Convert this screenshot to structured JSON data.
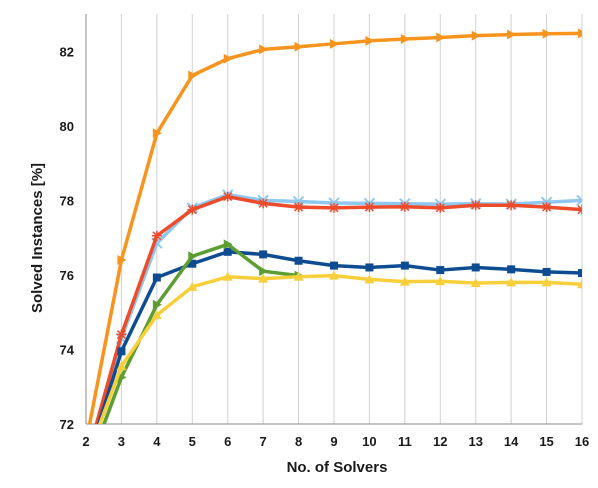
{
  "chart_data": {
    "type": "line",
    "xlabel": "No. of Solvers",
    "ylabel": "Solved Instances  [%]",
    "xlim": [
      2,
      16
    ],
    "ylim": [
      72,
      83
    ],
    "x_ticks": [
      "2",
      "3",
      "4",
      "5",
      "6",
      "7",
      "8",
      "9",
      "10",
      "11",
      "12",
      "13",
      "14",
      "15",
      "16"
    ],
    "y_ticks": [
      "72",
      "74",
      "76",
      "78",
      "80",
      "82"
    ],
    "grid": "vertical",
    "legend": "none",
    "series": [
      {
        "color": "#F7941D",
        "marker": "triangle-right",
        "x": [
          2,
          3,
          4,
          5,
          6,
          7,
          8,
          9,
          10,
          11,
          12,
          13,
          14,
          15,
          16
        ],
        "values": [
          71.5,
          76.4,
          79.8,
          81.35,
          81.8,
          82.05,
          82.12,
          82.2,
          82.28,
          82.33,
          82.37,
          82.42,
          82.45,
          82.47,
          82.48
        ]
      },
      {
        "color": "#8EC8F0",
        "marker": "x",
        "x": [
          2,
          3,
          4,
          5,
          6,
          7,
          8,
          9,
          10,
          11,
          12,
          13,
          14,
          15,
          16
        ],
        "values": [
          71.0,
          74.3,
          76.85,
          77.8,
          78.15,
          78.0,
          77.97,
          77.93,
          77.92,
          77.91,
          77.9,
          77.91,
          77.9,
          77.95,
          78.0
        ]
      },
      {
        "color": "#EE4B2B",
        "marker": "star",
        "x": [
          2,
          3,
          4,
          5,
          6,
          7,
          8,
          9,
          10,
          11,
          12,
          13,
          14,
          15,
          16
        ],
        "values": [
          71.0,
          74.4,
          77.05,
          77.75,
          78.1,
          77.92,
          77.82,
          77.8,
          77.82,
          77.83,
          77.8,
          77.87,
          77.87,
          77.82,
          77.75
        ]
      },
      {
        "color": "#0E4C92",
        "marker": "square",
        "x": [
          2,
          3,
          4,
          5,
          6,
          7,
          8,
          9,
          10,
          11,
          12,
          13,
          14,
          15,
          16
        ],
        "values": [
          70.9,
          73.95,
          75.93,
          76.3,
          76.62,
          76.55,
          76.38,
          76.25,
          76.2,
          76.25,
          76.13,
          76.2,
          76.15,
          76.08,
          76.05
        ]
      },
      {
        "color": "#5C9E31",
        "marker": "triangle-right",
        "x": [
          2,
          3,
          4,
          5,
          6,
          7,
          8
        ],
        "values": [
          70.7,
          73.25,
          75.2,
          76.5,
          76.82,
          76.1,
          75.98
        ]
      },
      {
        "color": "#F7CF3B",
        "marker": "triangle-up",
        "x": [
          2,
          3,
          4,
          5,
          6,
          7,
          8,
          9,
          10,
          11,
          12,
          13,
          14,
          15,
          16
        ],
        "values": [
          71.0,
          73.55,
          74.92,
          75.68,
          75.95,
          75.9,
          75.95,
          75.98,
          75.88,
          75.82,
          75.83,
          75.78,
          75.8,
          75.8,
          75.75
        ]
      }
    ]
  }
}
